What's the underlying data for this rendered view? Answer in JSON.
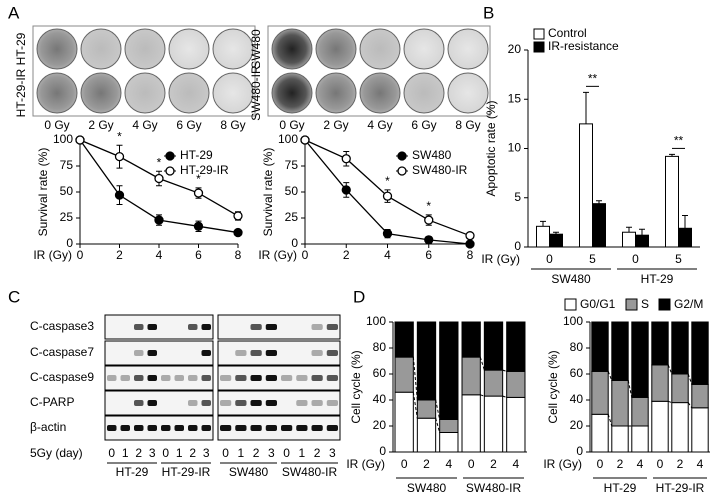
{
  "panels": [
    "A",
    "B",
    "C",
    "D"
  ],
  "colony": {
    "lines": [
      [
        "HT-29",
        "HT-29-IR"
      ],
      [
        "SW480",
        "SW480-IR"
      ]
    ],
    "doses": [
      "0 Gy",
      "2 Gy",
      "4 Gy",
      "6 Gy",
      "8 Gy"
    ]
  },
  "blot": {
    "rows": [
      "C-caspase3",
      "C-caspase7",
      "C-caspase9",
      "C-PARP",
      "β-actin"
    ],
    "lane_title": "5Gy (day)",
    "lanes": [
      "0",
      "1",
      "2",
      "3"
    ],
    "groups": [
      "HT-29",
      "HT-29-IR",
      "SW480",
      "SW480-IR"
    ]
  },
  "chart_data": [
    {
      "type": "line",
      "x": [
        0,
        2,
        4,
        6,
        8
      ],
      "xlim": [
        0,
        8
      ],
      "xticks": [
        0,
        2,
        4,
        6,
        8
      ],
      "ylim": [
        0,
        100
      ],
      "yticks": [
        0,
        25,
        50,
        75,
        100
      ],
      "xlabel": "IR (Gy)",
      "ylabel": "Survival rate (%)",
      "legend": "top-right",
      "annotations": [
        null,
        "*",
        "*",
        "*",
        null
      ],
      "series": [
        {
          "name": "HT-29",
          "color": "#000000",
          "values": [
            100,
            47,
            23,
            17,
            11
          ],
          "errors": [
            0,
            9,
            5,
            5,
            0
          ]
        },
        {
          "name": "HT-29-IR",
          "color": "#ffffff",
          "values": [
            100,
            84,
            63,
            49,
            27
          ],
          "errors": [
            0,
            11,
            7,
            5,
            4
          ]
        }
      ]
    },
    {
      "type": "line",
      "x": [
        0,
        2,
        4,
        6,
        8
      ],
      "xlim": [
        0,
        8
      ],
      "xticks": [
        0,
        2,
        4,
        6,
        8
      ],
      "ylim": [
        0,
        100
      ],
      "yticks": [
        0,
        25,
        50,
        75,
        100
      ],
      "xlabel": "IR (Gy)",
      "ylabel": "Survival rate (%)",
      "legend": "top-right",
      "annotations": [
        null,
        null,
        "*",
        "*",
        null
      ],
      "series": [
        {
          "name": "SW480",
          "color": "#000000",
          "values": [
            100,
            52,
            10,
            4,
            0
          ],
          "errors": [
            0,
            7,
            4,
            3,
            0
          ]
        },
        {
          "name": "SW480-IR",
          "color": "#ffffff",
          "values": [
            100,
            82,
            46,
            23,
            8
          ],
          "errors": [
            0,
            7,
            6,
            5,
            1
          ]
        }
      ]
    },
    {
      "type": "bar",
      "categories": [
        "0",
        "5",
        "0",
        "5"
      ],
      "groups": [
        "SW480",
        "HT-29"
      ],
      "ylim": [
        0,
        20
      ],
      "yticks": [
        0,
        5,
        10,
        15,
        20
      ],
      "xlabel": "IR (Gy)",
      "ylabel": "Apoptotic rate (%)",
      "legend": "top-left",
      "annotations": [
        null,
        "**",
        null,
        "**"
      ],
      "series": [
        {
          "name": "Control",
          "color": "#ffffff",
          "values": [
            2.1,
            12.5,
            1.5,
            9.2
          ],
          "errors": [
            0.5,
            3.2,
            0.5,
            0.2
          ]
        },
        {
          "name": "IR-resistance",
          "color": "#000000",
          "values": [
            1.3,
            4.4,
            1.2,
            1.9
          ],
          "errors": [
            0.2,
            0.3,
            0.6,
            1.3
          ]
        }
      ]
    },
    {
      "type": "stacked_bar",
      "categories": [
        "0",
        "2",
        "4",
        "0",
        "2",
        "4"
      ],
      "groups": [
        "SW480",
        "SW480-IR"
      ],
      "ylim": [
        0,
        100
      ],
      "yticks": [
        0,
        20,
        40,
        60,
        80,
        100
      ],
      "xlabel": "IR (Gy)",
      "ylabel": "Cell cycle (%)",
      "series": [
        {
          "color": "#ffffff",
          "values": [
            46,
            26,
            15,
            44,
            43,
            42
          ]
        },
        {
          "color": "#999999",
          "values": [
            27,
            14,
            10,
            29,
            20,
            20
          ]
        },
        {
          "color": "#000000",
          "values": [
            27,
            60,
            75,
            27,
            37,
            38
          ]
        }
      ]
    },
    {
      "type": "stacked_bar",
      "categories": [
        "0",
        "2",
        "4",
        "0",
        "2",
        "4"
      ],
      "groups": [
        "HT-29",
        "HT-29-IR"
      ],
      "ylim": [
        0,
        100
      ],
      "yticks": [
        0,
        20,
        40,
        60,
        80,
        100
      ],
      "xlabel": "IR (Gy)",
      "ylabel": "Cell cycle (%)",
      "legend": "top",
      "series": [
        {
          "name": "G0/G1",
          "color": "#ffffff",
          "values": [
            29,
            20,
            20,
            39,
            38,
            34
          ]
        },
        {
          "name": "S",
          "color": "#999999",
          "values": [
            33,
            35,
            22,
            28,
            22,
            18
          ]
        },
        {
          "name": "G2/M",
          "color": "#000000",
          "values": [
            38,
            45,
            58,
            33,
            40,
            48
          ]
        }
      ]
    }
  ]
}
